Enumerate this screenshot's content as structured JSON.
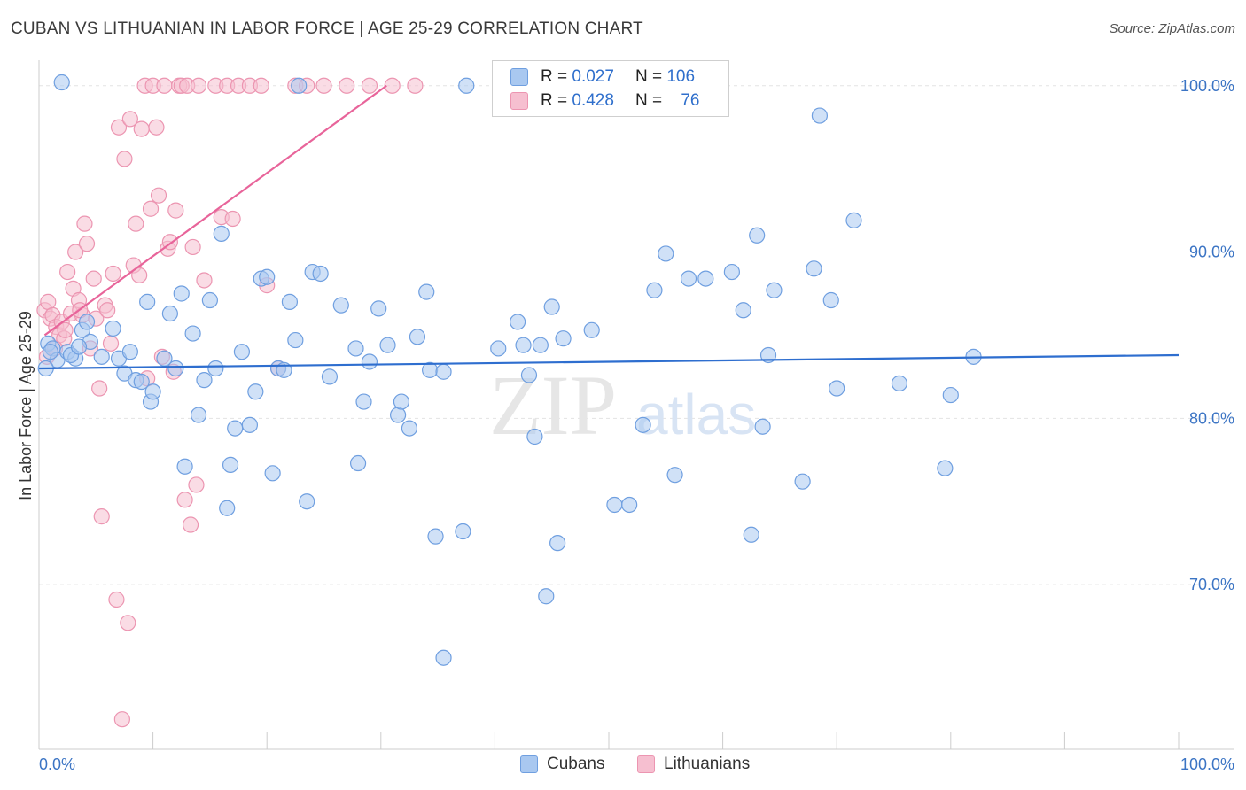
{
  "title": "CUBAN VS LITHUANIAN IN LABOR FORCE | AGE 25-29 CORRELATION CHART",
  "source": "Source: ZipAtlas.com",
  "watermark": {
    "zip": "ZIP",
    "atlas": "atlas"
  },
  "legend": {
    "rows": [
      {
        "r_label": "R =",
        "r_value": "0.027",
        "n_label": "N =",
        "n_value": "106"
      },
      {
        "r_label": "R =",
        "r_value": "0.428",
        "n_label": "N =",
        "n_value": "76"
      }
    ]
  },
  "bottom_legend": {
    "cubans": "Cubans",
    "lithuanians": "Lithuanians"
  },
  "colors": {
    "blue_fill": "#a9c8f0",
    "blue_stroke": "#6f9fe0",
    "blue_line": "#2e6ecf",
    "pink_fill": "#f6bfd0",
    "pink_stroke": "#ec95b1",
    "pink_line": "#e8649a",
    "tick_text": "#3b74c4",
    "grid": "#e3e3e3"
  },
  "chart_data": {
    "type": "scatter",
    "title": "CUBAN VS LITHUANIAN IN LABOR FORCE | AGE 25-29 CORRELATION CHART",
    "xlabel": "",
    "ylabel": "In Labor Force | Age 25-29",
    "xlim": [
      0,
      100
    ],
    "ylim": [
      60.1,
      101.0
    ],
    "x_tick_labels": {
      "left": "0.0%",
      "right": "100.0%"
    },
    "y_ticks": [
      {
        "value": 100,
        "label": "100.0%"
      },
      {
        "value": 90,
        "label": "90.0%"
      },
      {
        "value": 80,
        "label": "80.0%"
      },
      {
        "value": 70,
        "label": "70.0%"
      }
    ],
    "series": [
      {
        "name": "Cubans",
        "color": "blue",
        "trend": {
          "x": [
            0,
            100
          ],
          "y": [
            83.0,
            83.8
          ]
        },
        "points": [
          [
            0.8,
            84.5
          ],
          [
            1.2,
            84.2
          ],
          [
            1.6,
            83.5
          ],
          [
            2.5,
            84.0
          ],
          [
            3.2,
            83.6
          ],
          [
            3.8,
            85.3
          ],
          [
            4.5,
            84.6
          ],
          [
            4.2,
            85.8
          ],
          [
            5.5,
            83.7
          ],
          [
            6.5,
            85.4
          ],
          [
            7.0,
            83.6
          ],
          [
            7.5,
            82.7
          ],
          [
            8.0,
            84.0
          ],
          [
            8.5,
            82.3
          ],
          [
            9.0,
            82.2
          ],
          [
            9.5,
            87.0
          ],
          [
            9.8,
            81.0
          ],
          [
            10.0,
            81.6
          ],
          [
            11.0,
            83.6
          ],
          [
            11.5,
            86.3
          ],
          [
            12.0,
            83.0
          ],
          [
            12.5,
            87.5
          ],
          [
            12.8,
            77.1
          ],
          [
            13.5,
            85.1
          ],
          [
            14.0,
            80.2
          ],
          [
            14.5,
            82.3
          ],
          [
            15.0,
            87.1
          ],
          [
            15.5,
            83.0
          ],
          [
            16.0,
            91.1
          ],
          [
            16.5,
            74.6
          ],
          [
            16.8,
            77.2
          ],
          [
            17.2,
            79.4
          ],
          [
            17.8,
            84.0
          ],
          [
            18.5,
            79.6
          ],
          [
            19.0,
            81.6
          ],
          [
            19.5,
            88.4
          ],
          [
            20.0,
            88.5
          ],
          [
            20.5,
            76.7
          ],
          [
            21.0,
            83.0
          ],
          [
            21.5,
            82.9
          ],
          [
            22.0,
            87.0
          ],
          [
            22.5,
            84.7
          ],
          [
            22.8,
            100.0
          ],
          [
            23.5,
            75.0
          ],
          [
            24.0,
            88.8
          ],
          [
            24.7,
            88.7
          ],
          [
            25.5,
            82.5
          ],
          [
            26.5,
            86.8
          ],
          [
            27.8,
            84.2
          ],
          [
            28.0,
            77.3
          ],
          [
            28.5,
            81.0
          ],
          [
            29.0,
            83.4
          ],
          [
            29.8,
            86.6
          ],
          [
            30.6,
            84.4
          ],
          [
            31.5,
            80.2
          ],
          [
            31.8,
            81.0
          ],
          [
            32.5,
            79.4
          ],
          [
            33.2,
            84.9
          ],
          [
            34.0,
            87.6
          ],
          [
            34.3,
            82.9
          ],
          [
            34.8,
            72.9
          ],
          [
            35.5,
            65.6
          ],
          [
            35.5,
            82.8
          ],
          [
            37.2,
            73.2
          ],
          [
            37.5,
            100.0
          ],
          [
            40.3,
            84.2
          ],
          [
            42.0,
            85.8
          ],
          [
            42.5,
            84.4
          ],
          [
            43.0,
            82.6
          ],
          [
            43.5,
            78.9
          ],
          [
            44.0,
            84.4
          ],
          [
            44.5,
            69.3
          ],
          [
            45.0,
            86.7
          ],
          [
            45.5,
            72.5
          ],
          [
            46.0,
            84.8
          ],
          [
            48.5,
            85.3
          ],
          [
            50.5,
            74.8
          ],
          [
            51.8,
            74.8
          ],
          [
            53.0,
            79.6
          ],
          [
            54.0,
            87.7
          ],
          [
            55.0,
            89.9
          ],
          [
            55.8,
            76.6
          ],
          [
            57.0,
            88.4
          ],
          [
            58.5,
            88.4
          ],
          [
            60.8,
            88.8
          ],
          [
            61.8,
            86.5
          ],
          [
            62.5,
            73.0
          ],
          [
            63.0,
            91.0
          ],
          [
            63.5,
            79.5
          ],
          [
            64.0,
            83.8
          ],
          [
            64.5,
            87.7
          ],
          [
            67.0,
            76.2
          ],
          [
            68.0,
            89.0
          ],
          [
            68.5,
            98.2
          ],
          [
            69.5,
            87.1
          ],
          [
            70.0,
            81.8
          ],
          [
            71.5,
            91.9
          ],
          [
            75.5,
            82.1
          ],
          [
            79.5,
            77.0
          ],
          [
            80.0,
            81.4
          ],
          [
            82.0,
            83.7
          ],
          [
            2.0,
            100.2
          ],
          [
            0.6,
            83.0
          ],
          [
            2.8,
            83.8
          ],
          [
            3.5,
            84.3
          ],
          [
            1.0,
            84.0
          ]
        ]
      },
      {
        "name": "Lithuanians",
        "color": "pink",
        "trend": {
          "x": [
            0.5,
            30.5
          ],
          "y": [
            85.0,
            100.0
          ]
        },
        "points": [
          [
            0.5,
            86.5
          ],
          [
            0.8,
            87.0
          ],
          [
            1.0,
            86.0
          ],
          [
            1.2,
            86.2
          ],
          [
            1.5,
            85.5
          ],
          [
            1.8,
            85.0
          ],
          [
            2.0,
            85.8
          ],
          [
            2.2,
            84.8
          ],
          [
            2.5,
            88.8
          ],
          [
            2.8,
            86.3
          ],
          [
            3.0,
            87.8
          ],
          [
            3.2,
            90.0
          ],
          [
            3.5,
            87.1
          ],
          [
            3.8,
            86.2
          ],
          [
            4.0,
            91.7
          ],
          [
            4.2,
            90.5
          ],
          [
            4.5,
            84.2
          ],
          [
            4.8,
            88.4
          ],
          [
            5.0,
            86.0
          ],
          [
            5.3,
            81.8
          ],
          [
            5.5,
            74.1
          ],
          [
            5.8,
            86.8
          ],
          [
            6.0,
            86.5
          ],
          [
            6.3,
            84.5
          ],
          [
            6.5,
            88.7
          ],
          [
            6.8,
            69.1
          ],
          [
            7.0,
            97.5
          ],
          [
            7.3,
            61.9
          ],
          [
            7.5,
            95.6
          ],
          [
            7.8,
            67.7
          ],
          [
            8.0,
            98.0
          ],
          [
            8.3,
            89.2
          ],
          [
            8.5,
            91.7
          ],
          [
            8.8,
            88.6
          ],
          [
            9.0,
            97.4
          ],
          [
            9.3,
            100.0
          ],
          [
            9.5,
            82.4
          ],
          [
            9.8,
            92.6
          ],
          [
            10.0,
            100.0
          ],
          [
            10.3,
            97.5
          ],
          [
            10.5,
            93.4
          ],
          [
            10.8,
            83.7
          ],
          [
            11.0,
            100.0
          ],
          [
            11.3,
            90.2
          ],
          [
            11.5,
            90.6
          ],
          [
            11.8,
            82.8
          ],
          [
            12.0,
            92.5
          ],
          [
            12.3,
            100.0
          ],
          [
            12.5,
            100.0
          ],
          [
            12.8,
            75.1
          ],
          [
            13.0,
            100.0
          ],
          [
            13.3,
            73.6
          ],
          [
            13.5,
            90.3
          ],
          [
            13.8,
            76.0
          ],
          [
            14.0,
            100.0
          ],
          [
            14.5,
            88.3
          ],
          [
            15.5,
            100.0
          ],
          [
            16.0,
            92.1
          ],
          [
            16.5,
            100.0
          ],
          [
            17.0,
            92.0
          ],
          [
            17.5,
            100.0
          ],
          [
            18.5,
            100.0
          ],
          [
            19.5,
            100.0
          ],
          [
            20.0,
            88.0
          ],
          [
            21.0,
            83.0
          ],
          [
            22.5,
            100.0
          ],
          [
            23.5,
            100.0
          ],
          [
            25.0,
            100.0
          ],
          [
            27.0,
            100.0
          ],
          [
            29.0,
            100.0
          ],
          [
            31.0,
            100.0
          ],
          [
            33.0,
            100.0
          ],
          [
            0.7,
            83.7
          ],
          [
            1.4,
            84.2
          ],
          [
            2.3,
            85.3
          ],
          [
            3.6,
            86.5
          ]
        ]
      }
    ]
  }
}
